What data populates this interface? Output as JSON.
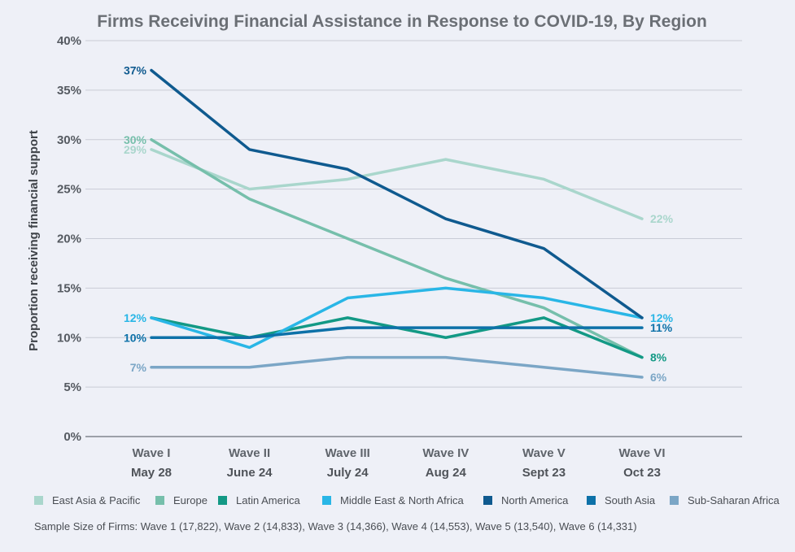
{
  "chart_data": {
    "type": "line",
    "title": "Firms Receiving Financial Assistance in Response to COVID-19, By Region",
    "ylabel": "Proportion receiving financial support",
    "xlabel": "",
    "ylim": [
      0,
      40
    ],
    "yticks": [
      "0%",
      "5%",
      "10%",
      "15%",
      "20%",
      "25%",
      "30%",
      "35%",
      "40%"
    ],
    "ytick_values": [
      0,
      5,
      10,
      15,
      20,
      25,
      30,
      35,
      40
    ],
    "categories": [
      {
        "wave": "Wave I",
        "date": "May 28"
      },
      {
        "wave": "Wave II",
        "date": "June 24"
      },
      {
        "wave": "Wave III",
        "date": "July 24"
      },
      {
        "wave": "Wave IV",
        "date": "Aug 24"
      },
      {
        "wave": "Wave V",
        "date": "Sept 23"
      },
      {
        "wave": "Wave VI",
        "date": "Oct 23"
      }
    ],
    "grid": true,
    "legend_position": "bottom",
    "series": [
      {
        "name": "East Asia & Pacific",
        "color": "#a9d6cc",
        "values": [
          29,
          25,
          26,
          28,
          26,
          22
        ],
        "labels": [
          {
            "index": 0,
            "text": "29%",
            "side": "left"
          },
          {
            "index": 5,
            "text": "22%",
            "side": "right"
          }
        ]
      },
      {
        "name": "Europe",
        "color": "#76bfab",
        "values": [
          30,
          24,
          20,
          16,
          13,
          8
        ],
        "labels": [
          {
            "index": 0,
            "text": "30%",
            "side": "left"
          }
        ]
      },
      {
        "name": "Latin America",
        "color": "#139985",
        "values": [
          12,
          10,
          12,
          10,
          12,
          8
        ],
        "labels": [
          {
            "index": 5,
            "text": "8%",
            "side": "right"
          }
        ]
      },
      {
        "name": "Middle East & North Africa",
        "color": "#29b6e6",
        "values": [
          12,
          9,
          14,
          15,
          14,
          12
        ],
        "labels": [
          {
            "index": 0,
            "text": "12%",
            "side": "left"
          },
          {
            "index": 5,
            "text": "12%",
            "side": "right"
          }
        ]
      },
      {
        "name": "North America",
        "color": "#0f5a8f",
        "values": [
          37,
          29,
          27,
          22,
          19,
          12
        ],
        "labels": [
          {
            "index": 0,
            "text": "37%",
            "side": "left"
          }
        ]
      },
      {
        "name": "South Asia",
        "color": "#0d71a8",
        "values": [
          10,
          10,
          11,
          11,
          11,
          11
        ],
        "labels": [
          {
            "index": 0,
            "text": "10%",
            "side": "left"
          },
          {
            "index": 5,
            "text": "11%",
            "side": "right"
          }
        ]
      },
      {
        "name": "Sub-Saharan Africa",
        "color": "#7ba6c6",
        "values": [
          7,
          7,
          8,
          8,
          7,
          6
        ],
        "labels": [
          {
            "index": 0,
            "text": "7%",
            "side": "left"
          },
          {
            "index": 5,
            "text": "6%",
            "side": "right"
          }
        ]
      }
    ],
    "note": "Sample Size of Firms: Wave 1 (17,822), Wave 2 (14,833), Wave 3 (14,366), Wave 4 (14,553), Wave 5 (13,540), Wave 6 (14,331)"
  }
}
